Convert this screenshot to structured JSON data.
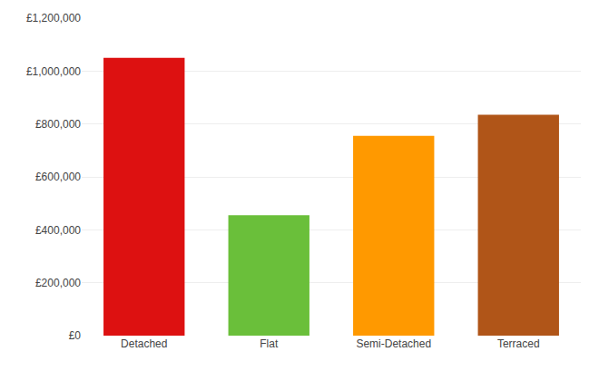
{
  "chart_data": {
    "type": "bar",
    "categories": [
      "Detached",
      "Flat",
      "Semi-Detached",
      "Terraced"
    ],
    "values": [
      1050000,
      455000,
      755000,
      835000
    ],
    "colors": [
      "#dd1111",
      "#6abf3a",
      "#ff9900",
      "#b05518"
    ],
    "ylim": [
      0,
      1200000
    ],
    "yticks": [
      {
        "value": 0,
        "label": "£0"
      },
      {
        "value": 200000,
        "label": "£200,000"
      },
      {
        "value": 400000,
        "label": "£400,000"
      },
      {
        "value": 600000,
        "label": "£600,000"
      },
      {
        "value": 800000,
        "label": "£800,000"
      },
      {
        "value": 1000000,
        "label": "£1,000,000"
      },
      {
        "value": 1200000,
        "label": "£1,200,000"
      }
    ],
    "grid": true
  }
}
